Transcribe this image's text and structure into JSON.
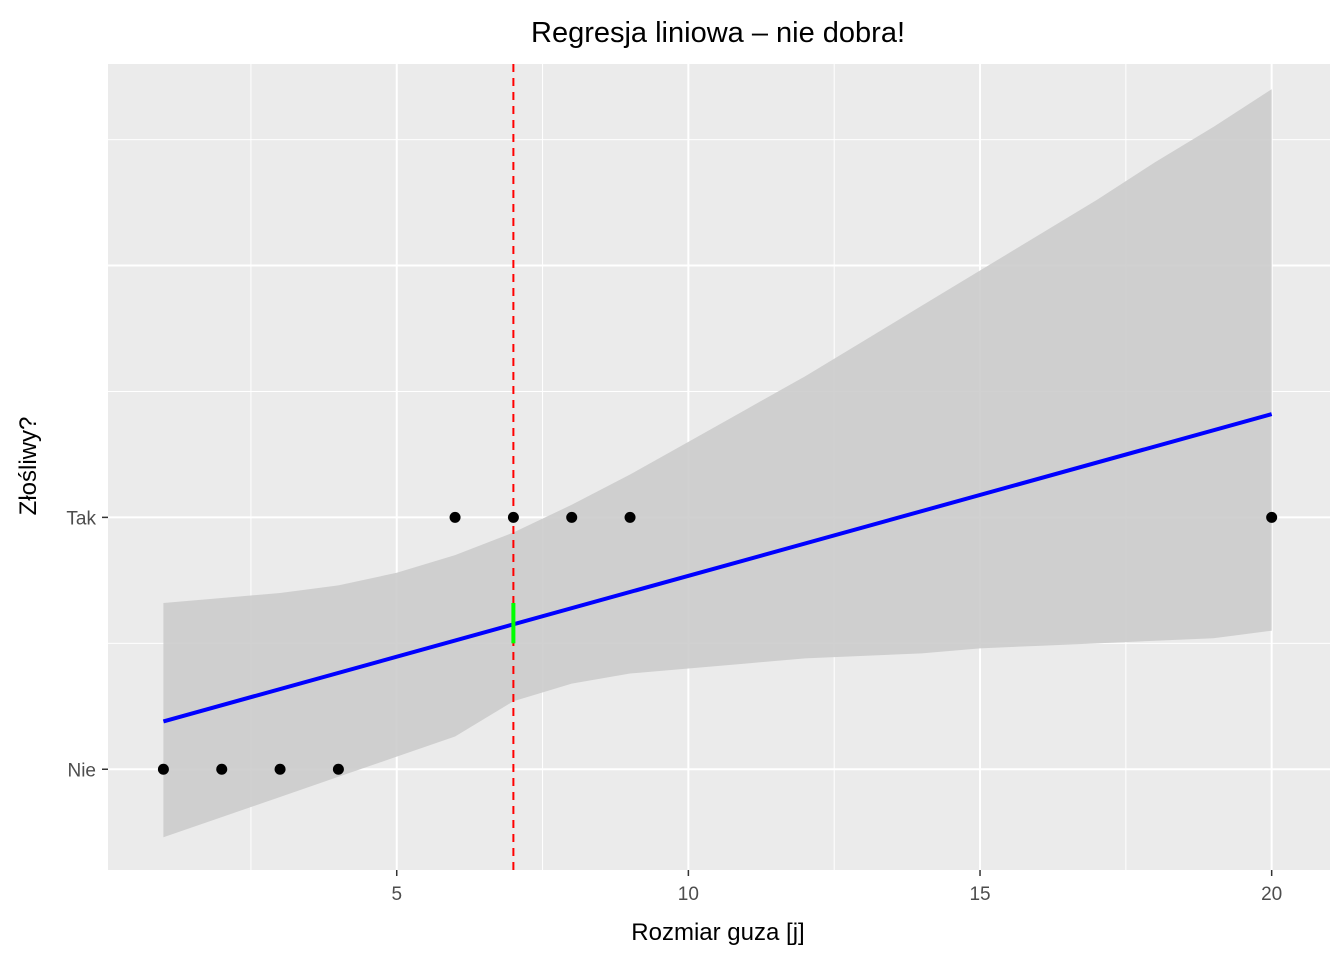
{
  "chart_data": {
    "type": "scatter",
    "title": "Regresja liniowa – nie dobra!",
    "xlabel": "Rozmiar guza [j]",
    "ylabel": "Złośliwy?",
    "xlim": [
      0.05,
      21.0
    ],
    "ylim": [
      -0.4,
      2.8
    ],
    "x_ticks": [
      5,
      10,
      15,
      20
    ],
    "y_ticks": [
      {
        "value": 0,
        "label": "Nie"
      },
      {
        "value": 1,
        "label": "Tak"
      }
    ],
    "grid": true,
    "points": [
      {
        "x": 1,
        "y": 0
      },
      {
        "x": 2,
        "y": 0
      },
      {
        "x": 3,
        "y": 0
      },
      {
        "x": 4,
        "y": 0
      },
      {
        "x": 6,
        "y": 1
      },
      {
        "x": 7,
        "y": 1
      },
      {
        "x": 8,
        "y": 1
      },
      {
        "x": 9,
        "y": 1
      },
      {
        "x": 20,
        "y": 1
      }
    ],
    "regression": {
      "x": [
        1,
        20
      ],
      "y": [
        0.19,
        1.41
      ],
      "color": "#0000ff"
    },
    "confidence_band": {
      "x": [
        1,
        2,
        3,
        4,
        5,
        6,
        7,
        8,
        9,
        10,
        11,
        12,
        13,
        14,
        15,
        16,
        17,
        18,
        19,
        20
      ],
      "upper": [
        0.66,
        0.68,
        0.7,
        0.73,
        0.78,
        0.85,
        0.94,
        1.05,
        1.17,
        1.3,
        1.43,
        1.56,
        1.7,
        1.84,
        1.98,
        2.12,
        2.26,
        2.41,
        2.55,
        2.7
      ],
      "lower": [
        -0.27,
        -0.19,
        -0.11,
        -0.03,
        0.05,
        0.13,
        0.27,
        0.34,
        0.38,
        0.4,
        0.42,
        0.44,
        0.45,
        0.46,
        0.48,
        0.49,
        0.5,
        0.51,
        0.52,
        0.55
      ],
      "color": "#cccccc"
    },
    "threshold": {
      "x": 7,
      "color": "#ff0000",
      "style": "dashed"
    },
    "highlight_segment": {
      "x": 7,
      "y1": 0.5,
      "y2": 0.66,
      "color": "#00ff00"
    },
    "panel_background": "#ebebeb",
    "point_color": "#000000"
  }
}
